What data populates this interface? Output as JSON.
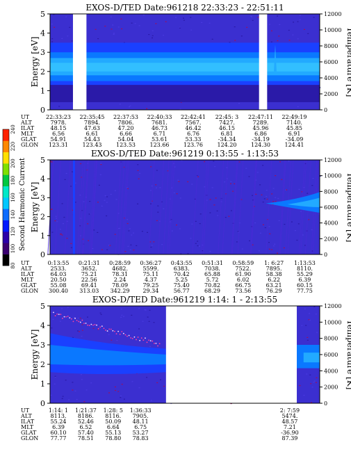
{
  "colorbar": {
    "label": "Second Harmonic Current",
    "ticks": [
      "80",
      "100",
      "120",
      "140",
      "160",
      "180",
      "200",
      "220",
      "240"
    ],
    "colors": [
      "#000000",
      "#3a0070",
      "#2a00a8",
      "#0018ff",
      "#0c6cff",
      "#00c8ff",
      "#00e8c8",
      "#00c840",
      "#7fe000",
      "#ffe000",
      "#ff8800",
      "#ff2000"
    ]
  },
  "chart_data": [
    {
      "type": "heatmap",
      "title": "EXOS-D/TED   Date:961218  22:33:23 - 22:51:11",
      "xlabel": "",
      "ylabel": "Energy [eV]",
      "y2label": "Temperature [K]",
      "ylim": [
        0,
        5
      ],
      "y2lim": [
        0,
        12000
      ],
      "yticks": [
        "0",
        "1",
        "2",
        "3",
        "4",
        "5"
      ],
      "y2ticks": [
        "0",
        "2000",
        "4000",
        "6000",
        "8000",
        "10000",
        "12000"
      ],
      "data_gaps": [
        [
          0.085,
          0.135
        ],
        [
          0.775,
          0.805
        ]
      ],
      "band": {
        "center_ev": 2.2,
        "width_ev": 0.8
      },
      "row_labels": [
        "UT",
        "ALT",
        "ILAT",
        "MLT",
        "GLAT",
        "GLON"
      ],
      "columns": [
        {
          "UT": "22:33:23",
          "ALT": "7978.",
          "ILAT": "48.15",
          "MLT": "6.56",
          "GLAT": "54.91",
          "GLON": "123.31"
        },
        {
          "UT": "22:35:45",
          "ALT": "7894.",
          "ILAT": "47.63",
          "MLT": "6.61",
          "GLAT": "54.43",
          "GLON": "123.43"
        },
        {
          "UT": "22:37:53",
          "ALT": "7806.",
          "ILAT": "47.20",
          "MLT": "6.66",
          "GLAT": "54.04",
          "GLON": "123.53"
        },
        {
          "UT": "22:40:33",
          "ALT": "7681.",
          "ILAT": "46.73",
          "MLT": "6.71",
          "GLAT": "53.61",
          "GLON": "123.66"
        },
        {
          "UT": "22:42:41",
          "ALT": "7567.",
          "ILAT": "46.42",
          "MLT": "6.76",
          "GLAT": "53.33",
          "GLON": "123.76"
        },
        {
          "UT": "22:45: 3",
          "ALT": "7427.",
          "ILAT": "46.15",
          "MLT": "6.81",
          "GLAT": "-34.34",
          "GLON": "124.20"
        },
        {
          "UT": "22:47:11",
          "ALT": "7289.",
          "ILAT": "45.96",
          "MLT": "6.86",
          "GLAT": "-34.19",
          "GLON": "124.30"
        },
        {
          "UT": "22:49:19",
          "ALT": "7140.",
          "ILAT": "45.85",
          "MLT": "6.91",
          "GLAT": "-34.09",
          "GLON": "124.41"
        }
      ]
    },
    {
      "type": "heatmap",
      "title": "EXOS-D/TED   Date:961219   0:13:55 -  1:13:53",
      "xlabel": "",
      "ylabel": "Energy [eV]",
      "y2label": "Temperature [K]",
      "ylim": [
        0,
        5
      ],
      "y2lim": [
        0,
        12000
      ],
      "yticks": [
        "0",
        "1",
        "2",
        "3",
        "4",
        "5"
      ],
      "y2ticks": [
        "0",
        "2000",
        "4000",
        "6000",
        "8000",
        "10000",
        "12000"
      ],
      "data_gaps": [],
      "row_labels": [
        "UT",
        "ALT",
        "ILAT",
        "MLT",
        "GLAT",
        "GLON"
      ],
      "columns": [
        {
          "UT": "0:13:55",
          "ALT": "2533.",
          "ILAT": "64.03",
          "MLT": "20.50",
          "GLAT": "55.08",
          "GLON": "300.40"
        },
        {
          "UT": "0:21:31",
          "ALT": "3652.",
          "ILAT": "75.21",
          "MLT": "22.56",
          "GLAT": "69.41",
          "GLON": "313.03"
        },
        {
          "UT": "0:28:59",
          "ALT": "4682.",
          "ILAT": "78.31",
          "MLT": "2.24",
          "GLAT": "78.09",
          "GLON": "342.29"
        },
        {
          "UT": "0:36:27",
          "ALT": "5599.",
          "ILAT": "75.11",
          "MLT": "4.37",
          "GLAT": "79.25",
          "GLON": "29.34"
        },
        {
          "UT": "0:43:55",
          "ALT": "6383.",
          "ILAT": "70.42",
          "MLT": "5.25",
          "GLAT": "75.40",
          "GLON": "56.77"
        },
        {
          "UT": "0:51:31",
          "ALT": "7038.",
          "ILAT": "65.88",
          "MLT": "5.72",
          "GLAT": "70.82",
          "GLON": "68.29"
        },
        {
          "UT": "0:58:59",
          "ALT": "7522.",
          "ILAT": "61.90",
          "MLT": "6.02",
          "GLAT": "66.75",
          "GLON": "73.56"
        },
        {
          "UT": "1: 6:27",
          "ALT": "7895.",
          "ILAT": "58.38",
          "MLT": "6.22",
          "GLAT": "63.21",
          "GLON": "76.29"
        },
        {
          "UT": "1:13:53",
          "ALT": "8110.",
          "ILAT": "55.29",
          "MLT": "6.39",
          "GLAT": "60.15",
          "GLON": "77.75"
        }
      ]
    },
    {
      "type": "heatmap",
      "title": "EXOS-D/TED   Date:961219   1:14: 1 -  2:13:55",
      "xlabel": "",
      "ylabel": "Energy [eV]",
      "y2label": "Temperature [K]",
      "ylim": [
        0,
        5
      ],
      "y2lim": [
        0,
        12000
      ],
      "yticks": [
        "0",
        "1",
        "2",
        "3",
        "4",
        "5"
      ],
      "y2ticks": [
        "0",
        "2000",
        "4000",
        "6000",
        "8000",
        "10000",
        "12000"
      ],
      "data_gaps": [
        [
          0.43,
          0.915
        ]
      ],
      "row_labels": [
        "UT",
        "ALT",
        "ILAT",
        "MLT",
        "GLAT",
        "GLON"
      ],
      "columns": [
        {
          "pos": 0.0,
          "UT": "1:14: 1",
          "ALT": "8113.",
          "ILAT": "55.24",
          "MLT": "6.39",
          "GLAT": "60.10",
          "GLON": "77.77"
        },
        {
          "pos": 0.11,
          "UT": "1:21:37",
          "ALT": "8186.",
          "ILAT": "52.46",
          "MLT": "6.52",
          "GLAT": "57.40",
          "GLON": "78.51"
        },
        {
          "pos": 0.22,
          "UT": "1:28: 5",
          "ALT": "8116.",
          "ILAT": "50.09",
          "MLT": "6.64",
          "GLAT": "55.13",
          "GLON": "78.80"
        },
        {
          "pos": 0.33,
          "UT": "1:36:33",
          "ALT": "7905.",
          "ILAT": "48.11",
          "MLT": "6.75",
          "GLAT": "53.27",
          "GLON": "78.83"
        },
        {
          "pos": 0.93,
          "UT": "2: 7:59",
          "ALT": "5474.",
          "ILAT": "48.57",
          "MLT": "7.21",
          "GLAT": "-36.90",
          "GLON": "87.39"
        }
      ]
    }
  ]
}
